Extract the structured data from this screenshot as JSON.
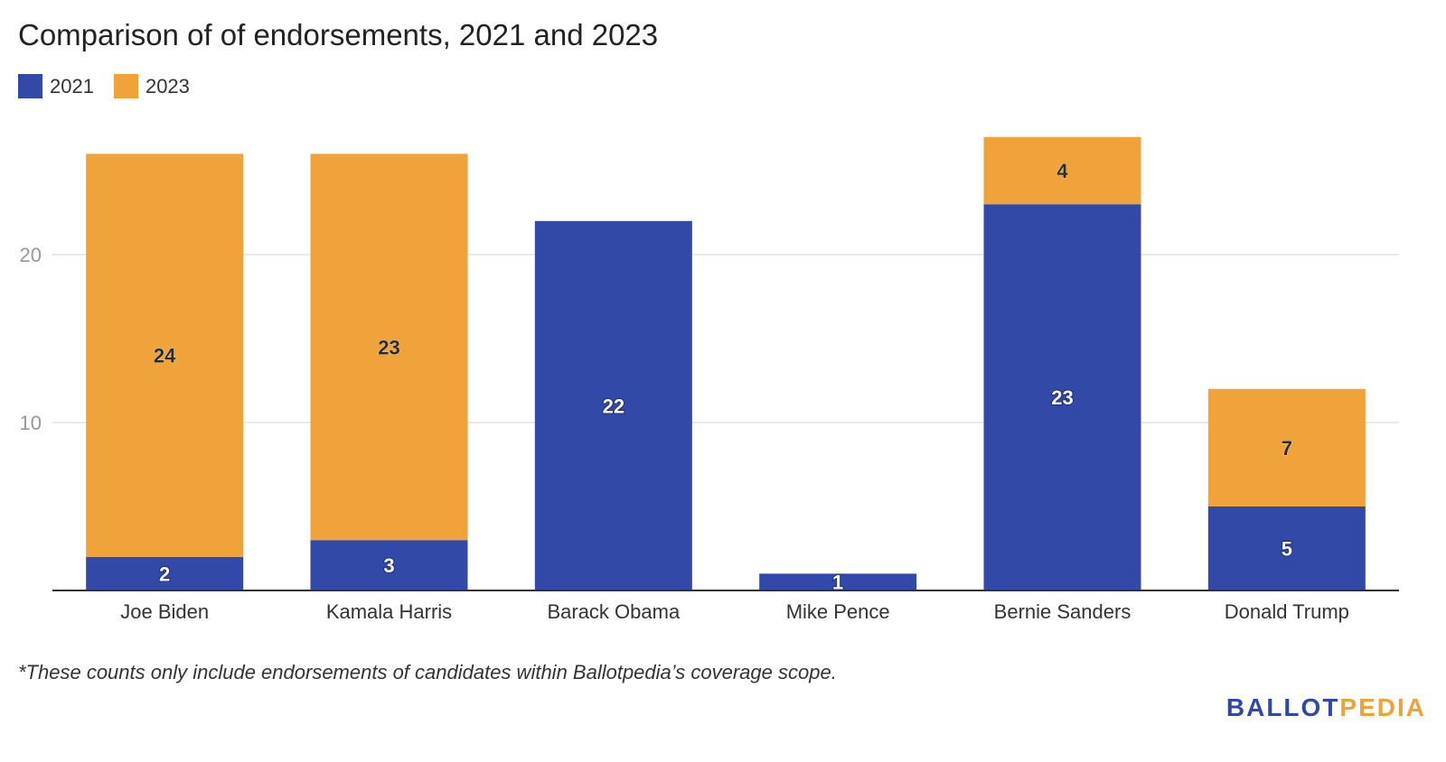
{
  "colors": {
    "series_2021": "#3349a8",
    "series_2023": "#f0a33a",
    "grid": "#e3e3e3",
    "axis": "#333333"
  },
  "chart_data": {
    "type": "bar",
    "stacked": true,
    "title": "Comparison of of endorsements, 2021 and 2023",
    "categories": [
      "Joe Biden",
      "Kamala Harris",
      "Barack Obama",
      "Mike Pence",
      "Bernie Sanders",
      "Donald Trump"
    ],
    "series": [
      {
        "name": "2021",
        "values": [
          2,
          3,
          22,
          1,
          23,
          5
        ]
      },
      {
        "name": "2023",
        "values": [
          24,
          23,
          0,
          0,
          4,
          7
        ]
      }
    ],
    "ylim": [
      0,
      29
    ],
    "yticks": [
      10,
      20
    ],
    "grid": true,
    "legend": "top-left"
  },
  "footnote": "*These counts only include endorsements of candidates within Ballotpedia’s coverage scope.",
  "logo": {
    "part1": "BALLOT",
    "part2": "PEDIA"
  }
}
